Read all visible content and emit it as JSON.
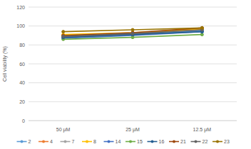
{
  "chart_data": {
    "type": "line",
    "y_label": "Cell viability (%)",
    "categories": [
      "50 μM",
      "25 μM",
      "12.5 μM"
    ],
    "series": [
      {
        "name": "2",
        "color": "#5b9bd5",
        "values": [
          88,
          91,
          95
        ]
      },
      {
        "name": "4",
        "color": "#ed7d31",
        "values": [
          90,
          92,
          97
        ]
      },
      {
        "name": "7",
        "color": "#a5a5a5",
        "values": [
          89,
          92,
          96
        ]
      },
      {
        "name": "8",
        "color": "#ffc000",
        "values": [
          91,
          93,
          97
        ]
      },
      {
        "name": "14",
        "color": "#4472c4",
        "values": [
          87,
          90,
          94
        ]
      },
      {
        "name": "15",
        "color": "#70ad47",
        "values": [
          86,
          88,
          91
        ]
      },
      {
        "name": "16",
        "color": "#255e91",
        "values": [
          88,
          91,
          94
        ]
      },
      {
        "name": "21",
        "color": "#9e480e",
        "values": [
          90,
          93,
          98
        ]
      },
      {
        "name": "22",
        "color": "#636363",
        "values": [
          89,
          92,
          96
        ]
      },
      {
        "name": "23",
        "color": "#997300",
        "values": [
          94,
          96,
          98
        ]
      }
    ],
    "ylim": [
      0,
      120
    ],
    "yticks": [
      0,
      20,
      40,
      60,
      80,
      100,
      120
    ],
    "grid": true,
    "legend": "bottom",
    "marker": "circle"
  }
}
